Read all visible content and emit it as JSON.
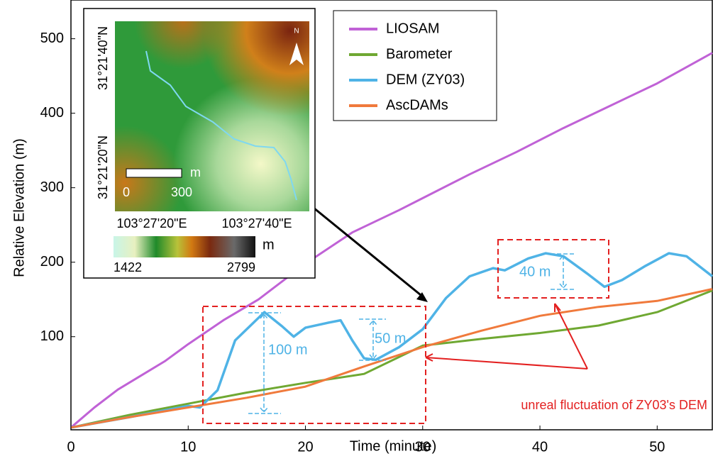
{
  "chart_data": {
    "type": "line",
    "x_label": "Time (minute)",
    "y_label": "Relative Elevation (m)",
    "xlim": [
      0,
      54.7
    ],
    "ylim": [
      -25,
      552
    ],
    "xticks": [
      0,
      10,
      20,
      30,
      40,
      50
    ],
    "yticks": [
      100,
      200,
      300,
      400,
      500
    ],
    "grid": false,
    "legend": "upper center",
    "series": [
      {
        "name": "LIOSAM",
        "color": "#c062d6",
        "x": [
          0,
          2,
          4,
          6,
          8,
          10,
          13,
          16,
          20,
          24,
          28,
          30,
          34,
          38,
          42,
          46,
          50,
          54.7
        ],
        "values": [
          -22,
          5,
          29,
          48,
          67,
          90,
          122,
          150,
          198,
          240,
          270,
          286,
          318,
          348,
          380,
          410,
          440,
          481
        ]
      },
      {
        "name": "Barometer",
        "color": "#6fa832",
        "x": [
          0,
          5,
          10,
          15,
          20,
          25,
          30,
          35,
          40,
          45,
          50,
          54.7
        ],
        "values": [
          -22,
          -5,
          10,
          25,
          38,
          50,
          88,
          97,
          105,
          115,
          133,
          162
        ]
      },
      {
        "name": "DEM (ZY03)",
        "color": "#4fb3e6",
        "x": [
          0,
          5,
          10,
          11,
          12.5,
          14,
          16.5,
          18,
          19,
          20,
          22,
          23,
          24,
          25,
          26,
          28,
          30,
          32,
          34,
          36,
          37,
          39,
          40.5,
          42,
          44,
          45.5,
          47,
          49,
          51,
          52.5,
          54.7
        ],
        "values": [
          -22,
          -8,
          7,
          5,
          28,
          95,
          133,
          114,
          100,
          112,
          119,
          122,
          95,
          71,
          69,
          86,
          110,
          152,
          181,
          192,
          189,
          205,
          212,
          208,
          185,
          167,
          176,
          195,
          212,
          208,
          181
        ]
      },
      {
        "name": "AscDAMs",
        "color": "#f07a3c",
        "x": [
          0,
          5,
          10,
          15,
          20,
          25,
          30,
          35,
          40,
          45,
          50,
          54.7
        ],
        "values": [
          -22,
          -8,
          5,
          18,
          33,
          60,
          86,
          108,
          128,
          140,
          148,
          164
        ]
      }
    ],
    "annotations": [
      "100 m",
      "50 m",
      "40 m",
      "unreal fluctuation of ZY03's DEM"
    ],
    "inset": {
      "lat_labels": [
        "31°21'40\"N",
        "31°21'20\"N"
      ],
      "lon_labels": [
        "103°27'20\"E",
        "103°27'40\"E"
      ],
      "scale_labels": [
        "0",
        "300",
        "m"
      ],
      "north": "N",
      "colorbar_unit": "m",
      "colorbar_labels": [
        "1422",
        "2799"
      ]
    }
  }
}
